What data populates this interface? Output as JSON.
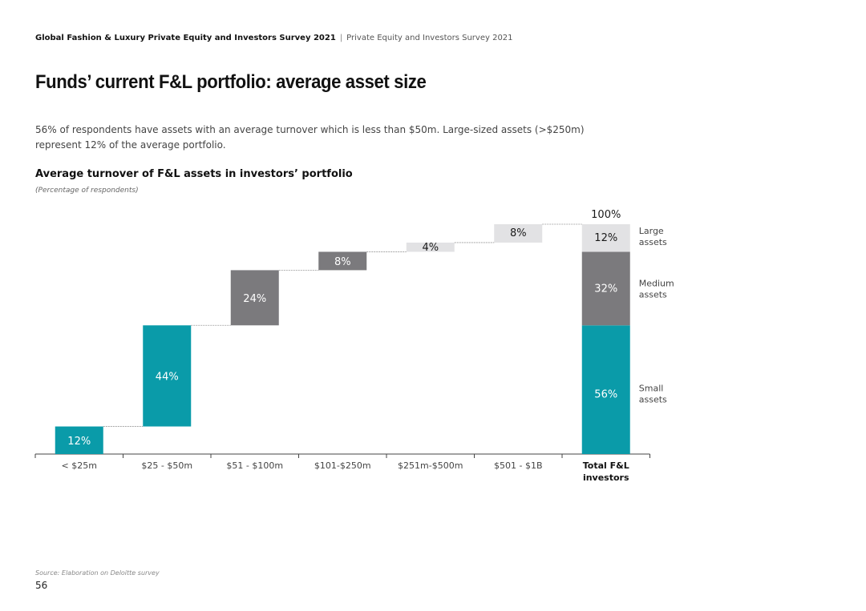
{
  "header": {
    "report_title": "Global Fashion & Luxury Private Equity and Investors Survey 2021",
    "separator": "|",
    "subtitle": "Private Equity and Investors Survey 2021"
  },
  "page_title": "Funds’ current F&L portfolio: average asset size",
  "intro": "56% of respondents have assets with an average turnover which is less than $50m. Large-sized assets (>$250m) represent 12% of the average portfolio.",
  "chart_data": {
    "type": "waterfall",
    "title": "Average turnover of F&L assets in investors’ portfolio",
    "subtitle": "(Percentage of respondents)",
    "unit": "%",
    "ylim": [
      0,
      100
    ],
    "categories": [
      "< $25m",
      "$25 - $50m",
      "$51 - $100m",
      "$101-$250m",
      "$251m-$500m",
      "$501 - $1B"
    ],
    "values": [
      12,
      44,
      24,
      8,
      4,
      8
    ],
    "labels": [
      "12%",
      "44%",
      "24%",
      "8%",
      "4%",
      "8%"
    ],
    "segments": [
      "small",
      "small",
      "medium",
      "medium",
      "large",
      "large"
    ],
    "total": {
      "category_lines": [
        "Total F&L",
        "investors"
      ],
      "value": 100,
      "label": "100%",
      "stack": [
        {
          "segment": "small",
          "value": 56,
          "label": "56%",
          "legend_lines": [
            "Small",
            "assets"
          ]
        },
        {
          "segment": "medium",
          "value": 32,
          "label": "32%",
          "legend_lines": [
            "Medium",
            "assets"
          ]
        },
        {
          "segment": "large",
          "value": 12,
          "label": "12%",
          "legend_lines": [
            "Large",
            "assets"
          ]
        }
      ]
    },
    "colors": {
      "small": "#0a9ba9",
      "medium": "#7b7a7d",
      "large": "#e2e2e4",
      "text_on_dark": "#ffffff",
      "text_on_light": "#1a1a1a",
      "axis": "#444444",
      "connector": "#9a9a9a"
    }
  },
  "footer": {
    "source": "Source: Elaboration on Deloitte survey",
    "page_number": "56"
  }
}
